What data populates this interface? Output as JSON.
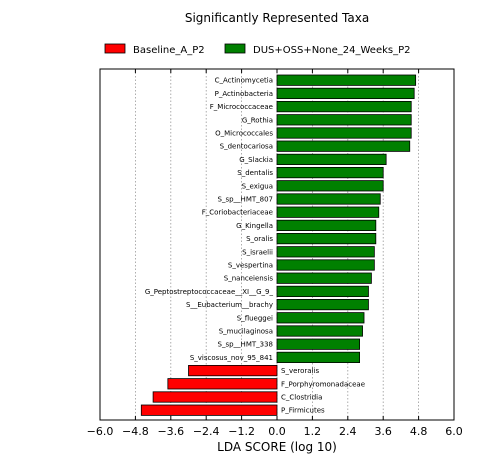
{
  "chart_data": {
    "type": "bar",
    "orientation": "horizontal",
    "title": "Significantly Represented Taxa",
    "xlabel": "LDA SCORE (log 10)",
    "xlim": [
      -6.0,
      6.0
    ],
    "xticks": [
      -6.0,
      -4.8,
      -3.6,
      -2.4,
      -1.2,
      0.0,
      1.2,
      2.4,
      3.6,
      4.8,
      6.0
    ],
    "xtick_labels": [
      "−6.0",
      "−4.8",
      "−3.6",
      "−2.4",
      "−1.2",
      "0.0",
      "1.2",
      "2.4",
      "3.6",
      "4.8",
      "6.0"
    ],
    "grid": true,
    "legend": {
      "placement": "top",
      "entries": [
        {
          "name": "Baseline_A_P2",
          "color": "#ff0000"
        },
        {
          "name": "DUS+OSS+None_24_Weeks_P2",
          "color": "#008000"
        }
      ]
    },
    "series": [
      {
        "name": "DUS+OSS+None_24_Weeks_P2",
        "color": "#008000",
        "categories": [
          "C_Actinomycetia",
          "P_Actinobacteria",
          "F_Micrococcaceae",
          "G_Rothia",
          "O_Micrococcales",
          "S_dentocariosa",
          "G_Slackia",
          "S_dentalis",
          "S_exigua",
          "S_sp__HMT_807",
          "F_Coriobacteriaceae",
          "G_Kingella",
          "S_oralis",
          "S_israelii",
          "S_vespertina",
          "S_nanceiensis",
          "G_Peptostreptococcaceae__XI__G_9_",
          "S__Eubacterium__brachy",
          "S_flueggei",
          "S_mucilaginosa",
          "S_sp__HMT_338",
          "S_viscosus_nov_95_841"
        ],
        "values": [
          4.7,
          4.65,
          4.55,
          4.55,
          4.55,
          4.5,
          3.7,
          3.6,
          3.6,
          3.5,
          3.45,
          3.35,
          3.35,
          3.3,
          3.3,
          3.2,
          3.1,
          3.1,
          2.95,
          2.9,
          2.8,
          2.8
        ]
      },
      {
        "name": "Baseline_A_P2",
        "color": "#ff0000",
        "categories": [
          "S_veroralis",
          "F_Porphyromonadaceae",
          "C_Clostridia",
          "P_Firmicutes"
        ],
        "values": [
          -3.0,
          -3.7,
          -4.2,
          -4.6
        ]
      }
    ]
  }
}
